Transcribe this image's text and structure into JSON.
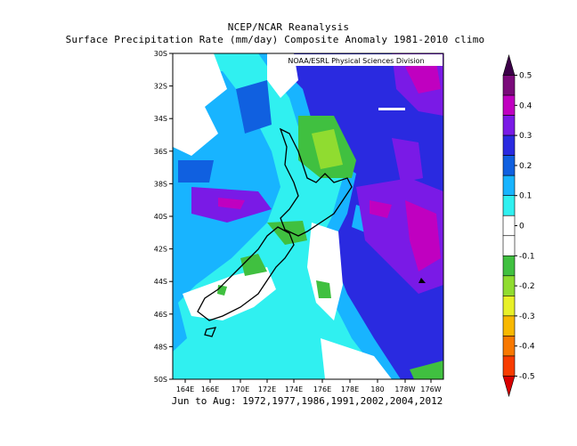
{
  "title": "NCEP/NCAR Reanalysis",
  "subtitle": "Surface Precipitation Rate (mm/day) Composite Anomaly 1981-2010 climo",
  "credit": "NOAA/ESRL Physical Sciences Division",
  "footer": "Jun to Aug: 1972,1977,1986,1991,2002,2004,2012",
  "lat_ticks": [
    "30S",
    "32S",
    "34S",
    "36S",
    "38S",
    "40S",
    "42S",
    "44S",
    "46S",
    "48S",
    "50S"
  ],
  "lon_ticks": [
    "164E",
    "166E",
    "170E",
    "172E",
    "174E",
    "176E",
    "178E",
    "180",
    "178W",
    "176W"
  ],
  "colorbar": {
    "labels": [
      "0.5",
      "0.4",
      "0.3",
      "0.2",
      "0.1",
      "0",
      "-0.1",
      "-0.2",
      "-0.3",
      "-0.4",
      "-0.5"
    ],
    "colors": [
      "#3c0048",
      "#7a0a7a",
      "#c000c0",
      "#7a1ae6",
      "#2a2ae0",
      "#1060e0",
      "#18b4ff",
      "#30f0f0",
      "#ffffff",
      "#ffffff",
      "#40c040",
      "#90dc30",
      "#e8f028",
      "#f8b800",
      "#f87800",
      "#f83c00",
      "#d80000"
    ]
  },
  "colors": {
    "white": "#ffffff",
    "cyan": "#30f0f0",
    "lightblue": "#18b4ff",
    "blue": "#1060e0",
    "darkblue": "#2a2ae0",
    "purple": "#7a1ae6",
    "magenta": "#c000c0",
    "green": "#40c040",
    "yellowgreen": "#90dc30"
  }
}
